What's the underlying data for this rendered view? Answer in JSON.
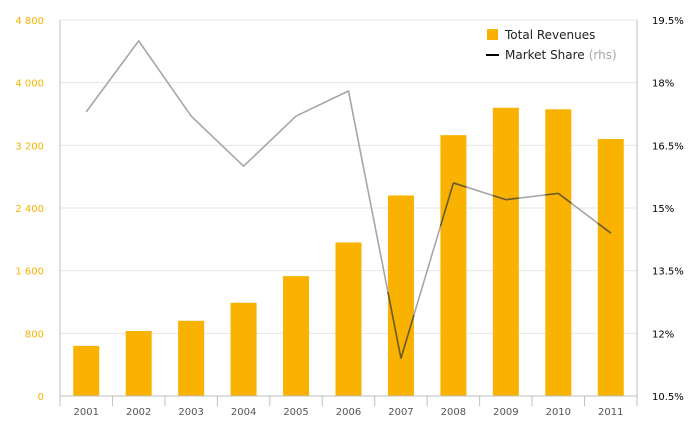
{
  "chart_data": {
    "type": "bar",
    "title": "",
    "categories": [
      "2001",
      "2002",
      "2003",
      "2004",
      "2005",
      "2006",
      "2007",
      "2008",
      "2009",
      "2010",
      "2011"
    ],
    "series": [
      {
        "name": "Total Revenues",
        "type": "bar",
        "axis": "left",
        "color": "#F9B200",
        "values": [
          640,
          830,
          960,
          1190,
          1530,
          1960,
          2560,
          3330,
          3680,
          3660,
          3280
        ]
      },
      {
        "name": "Market Share",
        "type": "line",
        "axis": "right",
        "color": "#A6A6A6",
        "values": [
          17.3,
          19.0,
          17.2,
          16.0,
          17.2,
          17.8,
          11.4,
          15.6,
          15.2,
          15.35,
          14.4
        ]
      }
    ],
    "y_left": {
      "min": 0,
      "max": 4800,
      "ticks": [
        0,
        800,
        1600,
        2400,
        3200,
        4000,
        4800
      ],
      "tick_labels": [
        "0",
        "800",
        "1 600",
        "2 400",
        "3 200",
        "4 000",
        "4 800"
      ],
      "color": "#F9B200"
    },
    "y_right": {
      "min": 10.5,
      "max": 19.5,
      "ticks": [
        10.5,
        12,
        13.5,
        15,
        16.5,
        18,
        19.5
      ],
      "tick_labels": [
        "10.5%",
        "12%",
        "13.5%",
        "15%",
        "16.5%",
        "18%",
        "19.5%"
      ],
      "color": "#000000"
    },
    "grid": true,
    "legend": {
      "placement": "top-right",
      "items": [
        {
          "label": "Total Revenues",
          "suffix": "",
          "symbol": "square",
          "color": "#F9B200"
        },
        {
          "label": "Market Share",
          "suffix": "(rhs)",
          "symbol": "line",
          "color": "#000000"
        }
      ]
    },
    "colors": {
      "grid": "#E6E6E6",
      "axis": "#BFBFBF",
      "tick_label": "#555555",
      "line_overlay": "#6F5A20",
      "legend_suffix": "#A6A6A6"
    }
  }
}
